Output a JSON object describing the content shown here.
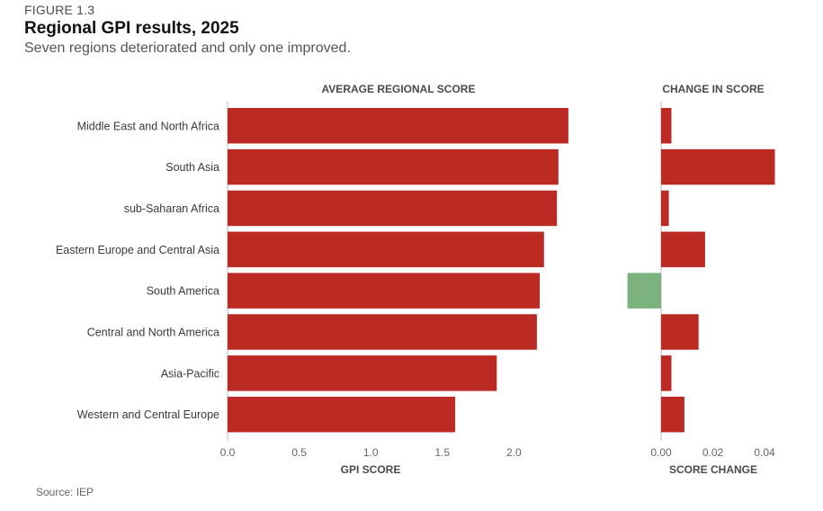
{
  "figure_label": "FIGURE 1.3",
  "title": "Regional GPI results, 2025",
  "subtitle": "Seven regions deteriorated and only one improved.",
  "source": "Source: IEP",
  "colors": {
    "deterioration": "#bb2b24",
    "improvement": "#7cb27e",
    "axis": "#bbbbbb"
  },
  "chart_data": [
    {
      "type": "bar",
      "orientation": "horizontal",
      "title": "AVERAGE REGIONAL SCORE",
      "xlabel": "GPI SCORE",
      "categories": [
        "Middle East and North Africa",
        "South Asia",
        "sub-Saharan Africa",
        "Eastern Europe and Central Asia",
        "South America",
        "Central and North America",
        "Asia-Pacific",
        "Western and Central Europe"
      ],
      "values": [
        2.38,
        2.31,
        2.3,
        2.21,
        2.18,
        2.16,
        1.88,
        1.59
      ],
      "xlim": [
        0,
        2.5
      ],
      "ticks": [
        "0.0",
        "0.5",
        "1.0",
        "1.5",
        "2.0"
      ],
      "tick_values": [
        0,
        0.5,
        1.0,
        1.5,
        2.0
      ],
      "grid": false
    },
    {
      "type": "bar",
      "orientation": "horizontal",
      "title": "CHANGE IN SCORE",
      "xlabel": "SCORE CHANGE",
      "categories": [
        "Middle East and North Africa",
        "South Asia",
        "sub-Saharan Africa",
        "Eastern Europe and Central Asia",
        "South America",
        "Central and North America",
        "Asia-Pacific",
        "Western and Central Europe"
      ],
      "values": [
        0.004,
        0.044,
        0.003,
        0.017,
        -0.013,
        0.0145,
        0.004,
        0.009
      ],
      "xlim": [
        -0.013,
        0.044
      ],
      "ticks": [
        "0.00",
        "0.02",
        "0.04"
      ],
      "tick_values": [
        0,
        0.02,
        0.04
      ],
      "grid": false
    }
  ]
}
